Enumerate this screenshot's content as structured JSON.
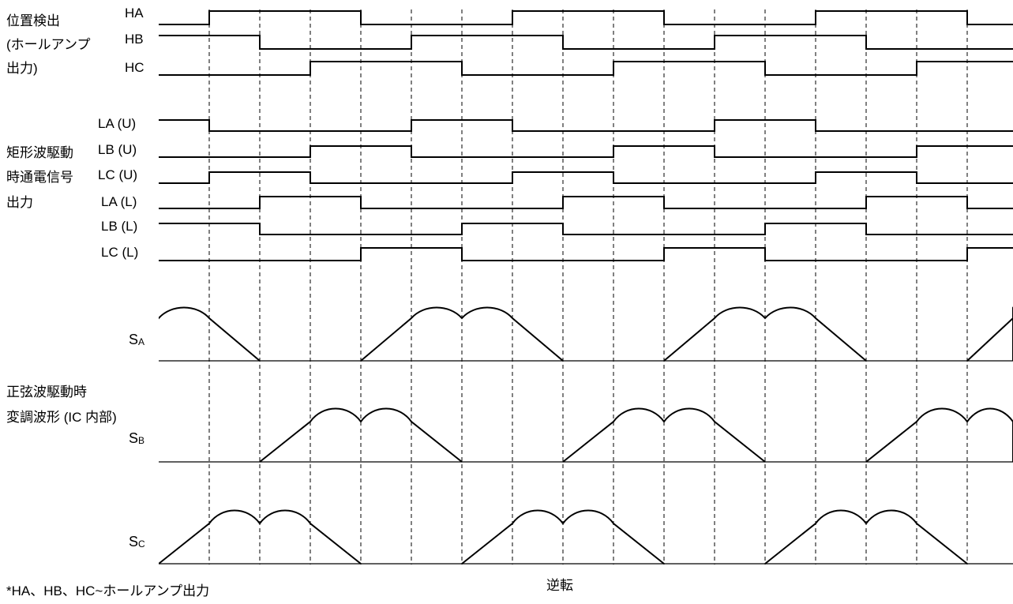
{
  "groups": {
    "position": [
      "位置検出",
      "(ホールアンプ",
      "出力)"
    ],
    "square": [
      "矩形波駆動",
      "時通電信号",
      "出力"
    ],
    "sine": [
      "正弦波駆動時",
      "変調波形 (IC 内部)"
    ]
  },
  "hall_signals": [
    {
      "label": "HA",
      "highs": [
        [
          1,
          4
        ],
        [
          7,
          10
        ],
        [
          13,
          16
        ]
      ]
    },
    {
      "label": "HB",
      "highs": [
        [
          0,
          2
        ],
        [
          5,
          8
        ],
        [
          11,
          14
        ]
      ]
    },
    {
      "label": "HC",
      "highs": [
        [
          3,
          6
        ],
        [
          9,
          12
        ],
        [
          15,
          17
        ]
      ]
    }
  ],
  "drive_signals": [
    {
      "label": "LA (U)",
      "highs": [
        [
          0,
          1
        ],
        [
          5,
          7
        ],
        [
          11,
          13
        ]
      ]
    },
    {
      "label": "LB (U)",
      "highs": [
        [
          3,
          5
        ],
        [
          9,
          11
        ],
        [
          15,
          17
        ]
      ]
    },
    {
      "label": "LC (U)",
      "highs": [
        [
          1,
          3
        ],
        [
          7,
          9
        ],
        [
          13,
          15
        ]
      ]
    },
    {
      "label": "LA (L)",
      "highs": [
        [
          2,
          4
        ],
        [
          8,
          10
        ],
        [
          14,
          16
        ]
      ]
    },
    {
      "label": "LB (L)",
      "highs": [
        [
          0,
          2
        ],
        [
          6,
          8
        ],
        [
          12,
          14
        ]
      ]
    },
    {
      "label": "LC (L)",
      "highs": [
        [
          4,
          6
        ],
        [
          10,
          12
        ],
        [
          16,
          17
        ]
      ]
    }
  ],
  "modulation": [
    {
      "main": "S",
      "sub": "A"
    },
    {
      "main": "S",
      "sub": "B"
    },
    {
      "main": "S",
      "sub": "C"
    }
  ],
  "direction": "逆転",
  "footnote": "*HA、HB、HC~ホールアンプ出力"
}
